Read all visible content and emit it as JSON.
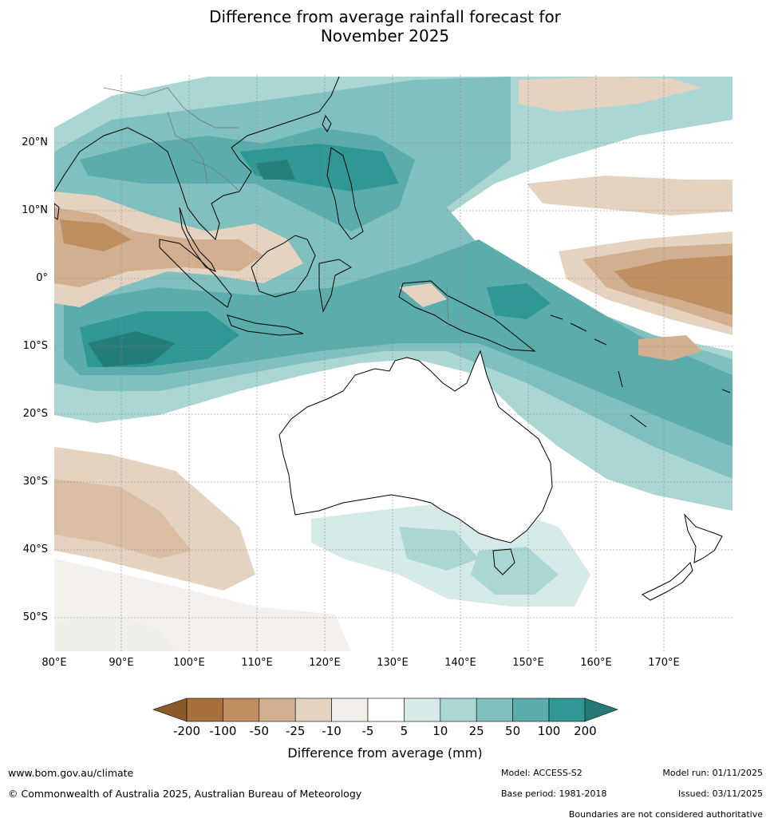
{
  "title": {
    "line1": "Difference from average rainfall forecast for",
    "line2": "November 2025"
  },
  "map": {
    "lon_ticks": [
      "80°E",
      "90°E",
      "100°E",
      "110°E",
      "120°E",
      "130°E",
      "140°E",
      "150°E",
      "160°E",
      "170°E"
    ],
    "lat_ticks": [
      "20°N",
      "10°N",
      "0°",
      "10°S",
      "20°S",
      "30°S",
      "40°S",
      "50°S"
    ],
    "lon_range": [
      80,
      180
    ],
    "lat_range": [
      -55,
      30
    ]
  },
  "legend": {
    "title": "Difference from average (mm)",
    "ticks": [
      "-200",
      "-100",
      "-50",
      "-25",
      "-10",
      "-5",
      "5",
      "10",
      "25",
      "50",
      "100",
      "200"
    ],
    "colors": [
      "#a8703a",
      "#bf8f62",
      "#d2b08f",
      "#e5d3c1",
      "#f3eee9",
      "#ffffff",
      "#d6ebe9",
      "#aad6d4",
      "#80c0be",
      "#5badab",
      "#2f9894"
    ],
    "under_color": "#8a5a2b",
    "over_color": "#257a76"
  },
  "footer": {
    "url": "www.bom.gov.au/climate",
    "copyright": "© Commonwealth of Australia 2025, Australian Bureau of Meteorology",
    "model": "Model: ACCESS-S2",
    "base_period": "Base period: 1981-2018",
    "model_run": "Model run: 01/11/2025",
    "issued": "Issued: 03/11/2025",
    "disclaimer": "Boundaries are not considered authoritative"
  }
}
